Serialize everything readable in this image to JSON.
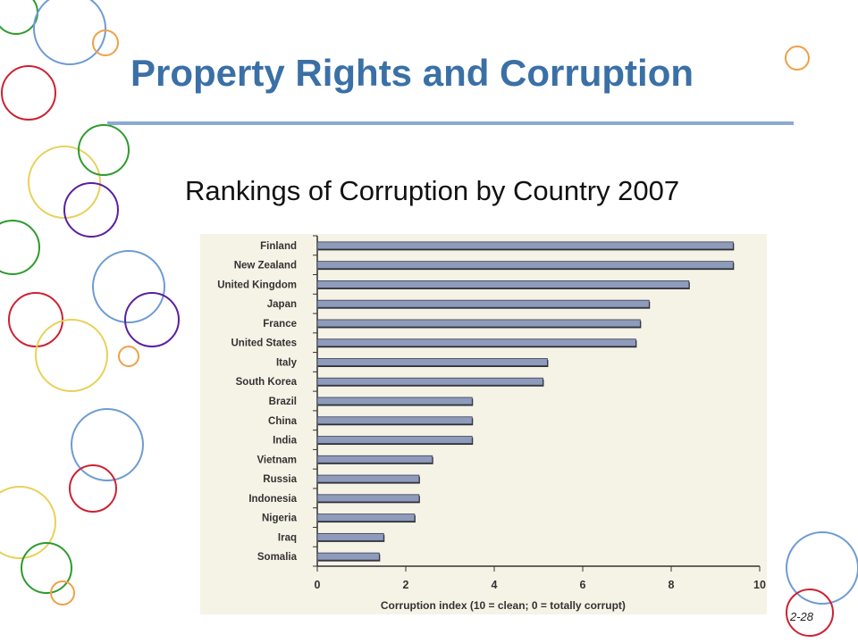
{
  "slide": {
    "title": "Property Rights and Corruption",
    "subtitle": "Rankings of Corruption by Country 2007",
    "page_number": "2-28"
  },
  "theme": {
    "title_color": "#3a70a6",
    "rule_color": "#8aaad3",
    "bar_color": "#8e9bbb",
    "panel_color": "#f5f3e6"
  },
  "decor": {
    "circle_colors": [
      "#2e9b2e",
      "#cc2233",
      "#6d9cd3",
      "#e8d15a",
      "#f0a046",
      "#5a1f9e"
    ]
  },
  "chart_data": {
    "type": "bar",
    "orientation": "horizontal",
    "title": "",
    "xlabel": "Corruption index (10 = clean; 0 = totally corrupt)",
    "ylabel": "",
    "xlim": [
      0,
      10
    ],
    "xticks": [
      0,
      2,
      4,
      6,
      8,
      10
    ],
    "grid": false,
    "categories": [
      "Finland",
      "New Zealand",
      "United Kingdom",
      "Japan",
      "France",
      "United States",
      "Italy",
      "South Korea",
      "Brazil",
      "China",
      "India",
      "Vietnam",
      "Russia",
      "Indonesia",
      "Nigeria",
      "Iraq",
      "Somalia"
    ],
    "values": [
      9.4,
      9.4,
      8.4,
      7.5,
      7.3,
      7.2,
      5.2,
      5.1,
      3.5,
      3.5,
      3.5,
      2.6,
      2.3,
      2.3,
      2.2,
      1.5,
      1.4
    ]
  }
}
